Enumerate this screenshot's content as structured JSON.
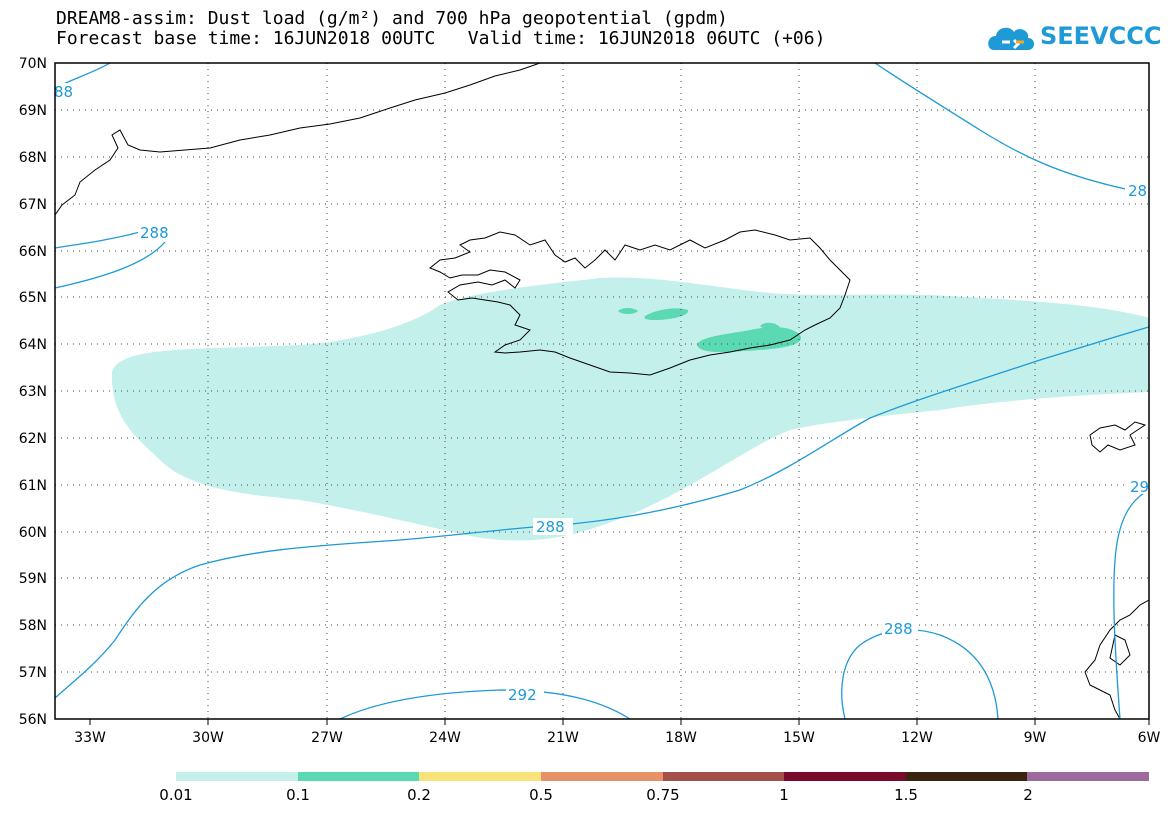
{
  "header": {
    "title_line1": "DREAM8-assim: Dust load (g/m²) and 700 hPa geopotential (gpdm)",
    "title_line2": "Forecast base time: 16JUN2018 00UTC   Valid time: 16JUN2018 06UTC (+06)"
  },
  "logo": {
    "text": "SEEVCCC",
    "color": "#1e9ad6"
  },
  "map": {
    "lat_labels": [
      "70N",
      "69N",
      "68N",
      "67N",
      "66N",
      "65N",
      "64N",
      "63N",
      "62N",
      "61N",
      "60N",
      "59N",
      "58N",
      "57N",
      "56N"
    ],
    "lon_labels": [
      "33W",
      "30W",
      "27W",
      "24W",
      "21W",
      "18W",
      "15W",
      "12W",
      "9W",
      "6W"
    ],
    "contour_labels": [
      {
        "text": "88"
      },
      {
        "text": "288"
      },
      {
        "text": "28"
      },
      {
        "text": "288"
      },
      {
        "text": "29"
      },
      {
        "text": "288"
      },
      {
        "text": "292"
      }
    ],
    "dust_color_low": "#c4f0eb",
    "dust_color_mid": "#5ad9b2",
    "contour_color": "#1e9ad6"
  },
  "colorbar": {
    "colors": [
      "#c4f0eb",
      "#5ad9b2",
      "#f8e37a",
      "#e89068",
      "#a45048",
      "#7a0a2c",
      "#3a2410",
      "#9e6a9e"
    ],
    "labels": [
      "0.01",
      "0.1",
      "0.2",
      "0.5",
      "0.75",
      "1",
      "1.5",
      "2"
    ]
  }
}
